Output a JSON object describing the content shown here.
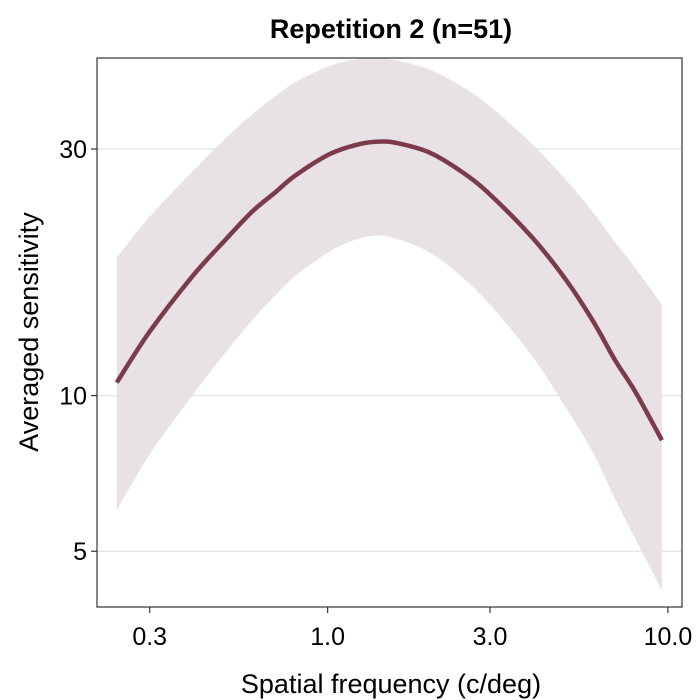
{
  "chart_data": {
    "type": "line",
    "title": "Repetition 2 (n=51)",
    "xlabel": "Spatial frequency (c/deg)",
    "ylabel": "Averaged sensitivity",
    "x_scale": "log",
    "y_scale": "log",
    "xlim": [
      0.21,
      11.0
    ],
    "ylim": [
      3.9,
      45.0
    ],
    "x_ticks": [
      {
        "value": 0.3,
        "label": "0.3"
      },
      {
        "value": 1.0,
        "label": "1.0"
      },
      {
        "value": 3.0,
        "label": "3.0"
      },
      {
        "value": 10.0,
        "label": "10.0"
      }
    ],
    "y_ticks": [
      {
        "value": 5,
        "label": "5"
      },
      {
        "value": 10,
        "label": "10"
      },
      {
        "value": 30,
        "label": "30"
      }
    ],
    "grid": "horizontal major only",
    "legend": "none",
    "series": [
      {
        "fit": {
          "peak_sensitivity": 31.0,
          "peak_frequency": 1.4
        },
        "x": [
          0.24,
          0.3,
          0.4,
          0.5,
          0.6,
          0.7,
          0.8,
          1.0,
          1.2,
          1.4,
          1.6,
          2.0,
          2.5,
          3.0,
          4.0,
          5.0,
          6.0,
          7.0,
          8.0,
          9.6
        ],
        "y": [
          10.6,
          13.3,
          17.0,
          20.0,
          22.7,
          24.7,
          26.6,
          29.2,
          30.5,
          31.0,
          30.8,
          29.5,
          27.0,
          24.5,
          20.2,
          16.8,
          14.0,
          11.7,
          10.2,
          8.2
        ],
        "ci_lower": [
          6.0,
          7.7,
          10.0,
          12.1,
          14.0,
          15.6,
          17.0,
          18.9,
          20.0,
          20.4,
          20.1,
          18.9,
          16.9,
          15.0,
          11.9,
          9.5,
          7.8,
          6.3,
          5.3,
          4.2
        ],
        "ci_upper": [
          18.5,
          22.2,
          27.1,
          31.4,
          35.0,
          37.9,
          40.3,
          43.3,
          44.7,
          45.0,
          44.5,
          42.7,
          39.5,
          36.3,
          30.6,
          26.2,
          22.7,
          19.8,
          17.7,
          15.0
        ]
      }
    ],
    "colors": {
      "line": "#7b3b4a",
      "ribbon": "#e8e2e7",
      "grid": "#e6e6e6",
      "border": "#333333"
    }
  }
}
